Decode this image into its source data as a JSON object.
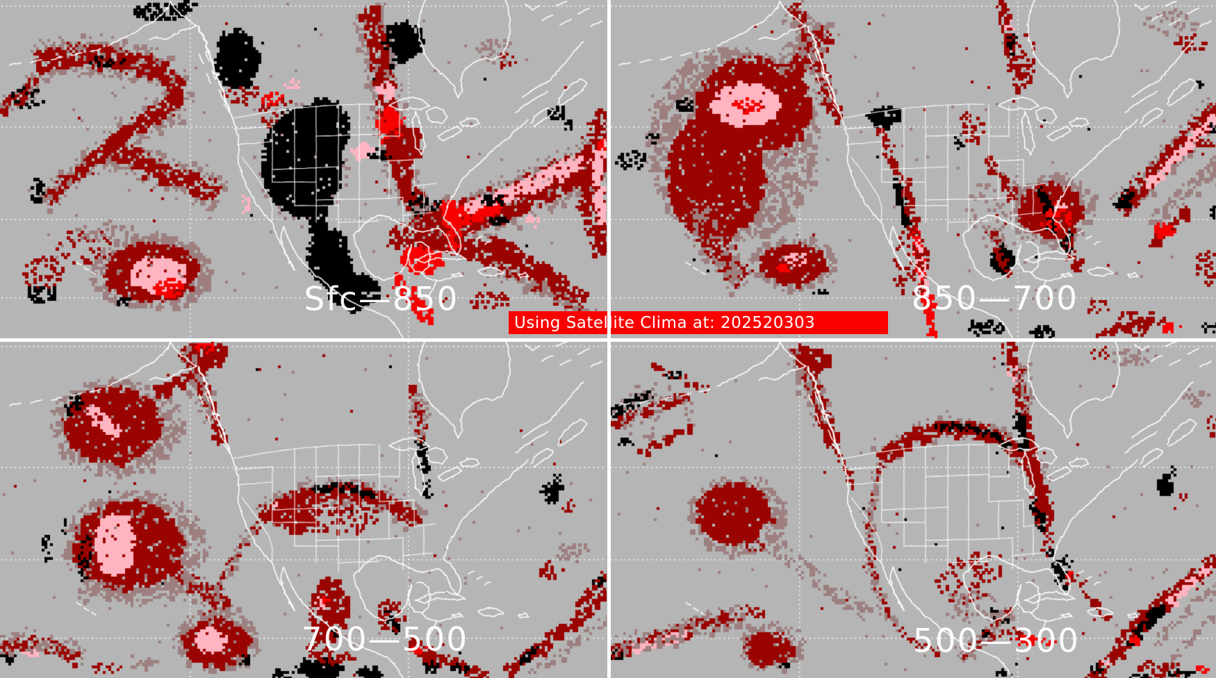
{
  "panels": [
    {
      "id": "sfc-850",
      "label": "Sfc—850",
      "position": "top-left"
    },
    {
      "id": "850-700",
      "label": "850—700",
      "position": "top-right"
    },
    {
      "id": "700-500",
      "label": "700—500",
      "position": "bottom-left"
    },
    {
      "id": "500-300",
      "label": "500—300",
      "position": "bottom-right"
    }
  ],
  "banner": {
    "text": "Using Satellite Clima at: 202520303",
    "background": "#fb0000",
    "color": "#ffffff"
  },
  "palette": {
    "background": "#b5b5b5",
    "low": "#9d7f7f",
    "moderate": "#9a0400",
    "high": "#f60100",
    "very_high": "#ffb4c1",
    "extreme": "#000000",
    "outlines": "#ffffff"
  }
}
